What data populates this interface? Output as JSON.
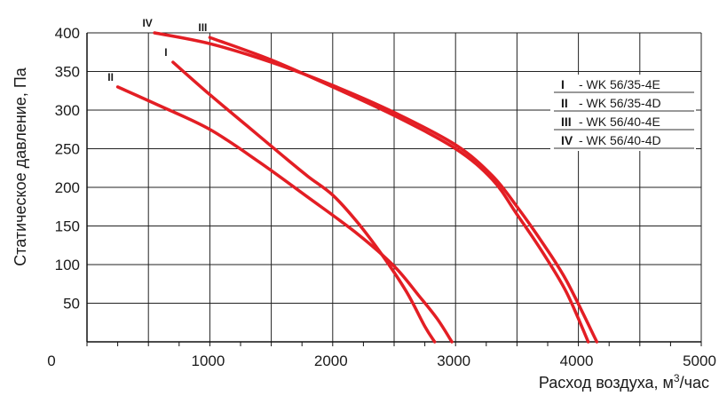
{
  "chart_data": {
    "type": "line",
    "title": "",
    "xlabel": "Расход воздуха, м",
    "xlabel_sup": "3",
    "xlabel_suffix": "/час",
    "ylabel": "Статическое давление, Па",
    "origin_label": "0",
    "xlim": [
      0,
      5000
    ],
    "ylim": [
      0,
      400
    ],
    "x_ticks": [
      1000,
      2000,
      3000,
      4000,
      5000
    ],
    "y_ticks": [
      50,
      100,
      150,
      200,
      250,
      300,
      350,
      400
    ],
    "grid": true,
    "legend_position": "right",
    "line_color": "#e31e24",
    "series": [
      {
        "name": "WK 56/35-4E",
        "numeral": "I",
        "points": [
          [
            700,
            362
          ],
          [
            1000,
            320
          ],
          [
            1300,
            280
          ],
          [
            1600,
            240
          ],
          [
            1800,
            214
          ],
          [
            2000,
            190
          ],
          [
            2200,
            155
          ],
          [
            2400,
            113
          ],
          [
            2600,
            65
          ],
          [
            2750,
            20
          ],
          [
            2830,
            0
          ]
        ]
      },
      {
        "name": "WK 56/35-4D",
        "numeral": "II",
        "points": [
          [
            250,
            330
          ],
          [
            600,
            305
          ],
          [
            1000,
            275
          ],
          [
            1400,
            233
          ],
          [
            1800,
            187
          ],
          [
            2200,
            140
          ],
          [
            2500,
            98
          ],
          [
            2700,
            60
          ],
          [
            2850,
            30
          ],
          [
            2970,
            0
          ]
        ]
      },
      {
        "name": "WK 56/40-4E",
        "numeral": "III",
        "points": [
          [
            1000,
            394
          ],
          [
            1500,
            365
          ],
          [
            2000,
            330
          ],
          [
            2500,
            293
          ],
          [
            3000,
            250
          ],
          [
            3300,
            210
          ],
          [
            3500,
            165
          ],
          [
            3700,
            118
          ],
          [
            3900,
            65
          ],
          [
            4080,
            0
          ]
        ]
      },
      {
        "name": "WK 56/40-4D",
        "numeral": "IV",
        "points": [
          [
            550,
            400
          ],
          [
            1000,
            386
          ],
          [
            1500,
            362
          ],
          [
            2000,
            332
          ],
          [
            2500,
            297
          ],
          [
            3000,
            255
          ],
          [
            3300,
            215
          ],
          [
            3500,
            175
          ],
          [
            3700,
            130
          ],
          [
            3900,
            80
          ],
          [
            4150,
            0
          ]
        ]
      }
    ]
  }
}
